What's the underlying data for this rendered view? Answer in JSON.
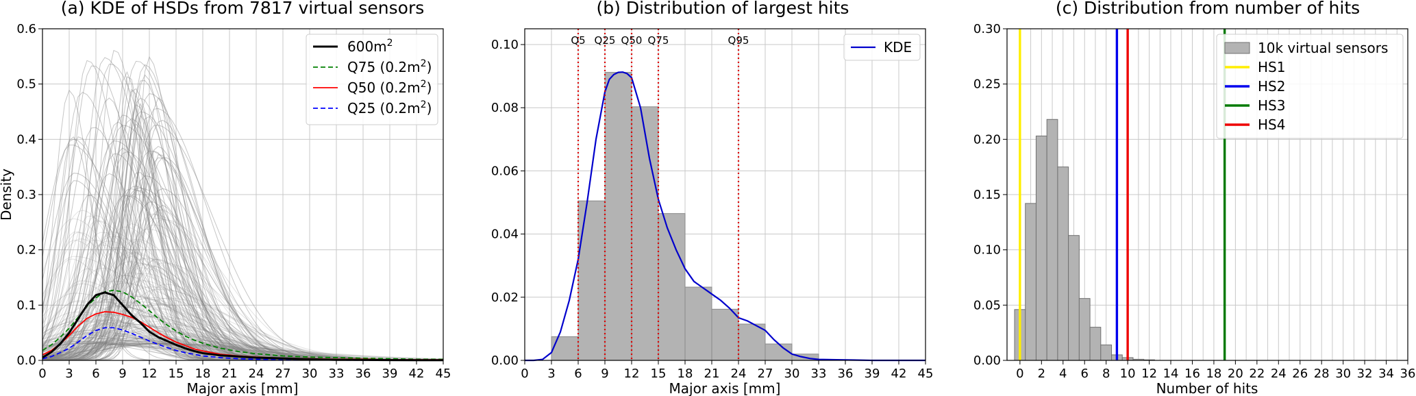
{
  "chart_data": [
    {
      "type": "line",
      "title": "(a) KDE of HSDs from 7817 virtual sensors",
      "xlabel": "Major axis [mm]",
      "ylabel": "Density",
      "xlim": [
        0,
        45
      ],
      "ylim": [
        0,
        0.6
      ],
      "xticks": [
        "0",
        "3",
        "6",
        "9",
        "12",
        "15",
        "18",
        "21",
        "24",
        "27",
        "30",
        "33",
        "36",
        "39",
        "42",
        "45"
      ],
      "yticks": [
        "0.0",
        "0.1",
        "0.2",
        "0.3",
        "0.4",
        "0.5",
        "0.6"
      ],
      "grid": true,
      "legend_position": "top-right",
      "background_ensemble": {
        "description_free": true,
        "color": "#808080",
        "peak_range": [
          0.03,
          0.58
        ],
        "mode_range": [
          3,
          14
        ]
      },
      "series": [
        {
          "name": "600m",
          "name_sup": "2",
          "style": "solid",
          "color": "#000000",
          "width": 3,
          "x": [
            0,
            1,
            2,
            3,
            4,
            5,
            6,
            7,
            8,
            9,
            10,
            11,
            12,
            13,
            14,
            15,
            16,
            17,
            18,
            19,
            20,
            21,
            22,
            24,
            26,
            28,
            30,
            33,
            36,
            39,
            42,
            45
          ],
          "y": [
            0.005,
            0.015,
            0.03,
            0.05,
            0.075,
            0.1,
            0.118,
            0.123,
            0.118,
            0.1,
            0.082,
            0.068,
            0.052,
            0.042,
            0.035,
            0.028,
            0.022,
            0.017,
            0.013,
            0.011,
            0.009,
            0.008,
            0.007,
            0.005,
            0.004,
            0.003,
            0.002,
            0.001,
            0.0008,
            0.0005,
            0.0003,
            0.0002
          ]
        },
        {
          "name": "Q75 (0.2m",
          "name_sup": "2",
          "name_end": ")",
          "style": "dashed",
          "color": "#008000",
          "width": 1.8,
          "x": [
            0,
            1,
            2,
            3,
            4,
            5,
            6,
            7,
            8,
            9,
            10,
            11,
            12,
            13,
            14,
            15,
            16,
            17,
            18,
            20,
            22,
            24,
            27,
            30,
            33,
            36,
            39,
            42,
            45
          ],
          "y": [
            0.018,
            0.028,
            0.042,
            0.058,
            0.078,
            0.098,
            0.113,
            0.124,
            0.127,
            0.124,
            0.115,
            0.103,
            0.09,
            0.076,
            0.064,
            0.053,
            0.044,
            0.037,
            0.031,
            0.022,
            0.016,
            0.012,
            0.008,
            0.006,
            0.005,
            0.004,
            0.003,
            0.002,
            0.002
          ]
        },
        {
          "name": "Q50 (0.2m",
          "name_sup": "2",
          "name_end": ")",
          "style": "solid",
          "color": "#ff0000",
          "width": 1.8,
          "x": [
            0,
            1,
            2,
            3,
            4,
            5,
            6,
            7,
            8,
            9,
            10,
            11,
            12,
            13,
            14,
            15,
            16,
            17,
            18,
            20,
            22,
            24,
            27,
            30,
            33,
            36,
            39,
            42,
            45
          ],
          "y": [
            0.01,
            0.018,
            0.03,
            0.045,
            0.062,
            0.076,
            0.084,
            0.088,
            0.087,
            0.083,
            0.078,
            0.07,
            0.06,
            0.05,
            0.041,
            0.033,
            0.027,
            0.021,
            0.017,
            0.011,
            0.008,
            0.006,
            0.004,
            0.003,
            0.002,
            0.002,
            0.001,
            0.001,
            0.001
          ]
        },
        {
          "name": "Q25 (0.2m",
          "name_sup": "2",
          "name_end": ")",
          "style": "dashed",
          "color": "#0000ff",
          "width": 1.8,
          "x": [
            0,
            1,
            2,
            3,
            4,
            5,
            6,
            7,
            8,
            9,
            10,
            11,
            12,
            13,
            14,
            15,
            16,
            17,
            18,
            20,
            22,
            24,
            27,
            30,
            33,
            36,
            39,
            42,
            45
          ],
          "y": [
            0.003,
            0.007,
            0.014,
            0.022,
            0.033,
            0.045,
            0.054,
            0.059,
            0.059,
            0.055,
            0.049,
            0.042,
            0.035,
            0.029,
            0.023,
            0.018,
            0.014,
            0.011,
            0.008,
            0.005,
            0.003,
            0.002,
            0.001,
            0.001,
            0.0005,
            0.0003,
            0.0002,
            0.0001,
            0.0001
          ]
        }
      ]
    },
    {
      "type": "bar",
      "title": "(b) Distribution of largest hits",
      "xlabel": "Major axis [mm]",
      "ylabel": "",
      "xlim": [
        0,
        45
      ],
      "ylim": [
        0,
        0.105
      ],
      "xticks": [
        "0",
        "3",
        "6",
        "9",
        "12",
        "15",
        "18",
        "21",
        "24",
        "27",
        "30",
        "33",
        "36",
        "39",
        "42",
        "45"
      ],
      "yticks": [
        "0.00",
        "0.02",
        "0.04",
        "0.06",
        "0.08",
        "0.10"
      ],
      "grid": true,
      "legend_position": "top-right",
      "bar_color": "#b3b3b3",
      "bins": [
        {
          "x0": 3,
          "x1": 6,
          "value": 0.0075
        },
        {
          "x0": 6,
          "x1": 9,
          "value": 0.0505
        },
        {
          "x0": 9,
          "x1": 12,
          "value": 0.0912
        },
        {
          "x0": 12,
          "x1": 15,
          "value": 0.0803
        },
        {
          "x0": 15,
          "x1": 18,
          "value": 0.0465
        },
        {
          "x0": 18,
          "x1": 21,
          "value": 0.0232
        },
        {
          "x0": 21,
          "x1": 24,
          "value": 0.0162
        },
        {
          "x0": 24,
          "x1": 27,
          "value": 0.0115
        },
        {
          "x0": 27,
          "x1": 30,
          "value": 0.0052
        },
        {
          "x0": 30,
          "x1": 33,
          "value": 0.002
        }
      ],
      "kde": {
        "name": "KDE",
        "color": "#0000cc",
        "x": [
          0,
          1,
          2,
          3,
          4,
          5,
          6,
          7,
          8,
          9,
          9.5,
          10,
          10.5,
          11,
          11.5,
          12,
          13,
          14,
          15,
          16,
          17,
          18,
          19,
          20,
          21,
          22,
          23,
          24,
          25,
          26,
          27,
          28,
          29,
          30,
          31,
          32,
          33,
          35,
          37,
          39,
          41,
          43,
          45
        ],
        "y": [
          0,
          0,
          0.0003,
          0.0025,
          0.009,
          0.019,
          0.032,
          0.05,
          0.07,
          0.085,
          0.089,
          0.0905,
          0.0912,
          0.0913,
          0.0908,
          0.0895,
          0.08,
          0.064,
          0.051,
          0.042,
          0.035,
          0.029,
          0.025,
          0.023,
          0.021,
          0.019,
          0.0165,
          0.0135,
          0.0125,
          0.011,
          0.0095,
          0.0065,
          0.004,
          0.002,
          0.0012,
          0.0006,
          0.0003,
          0.0002,
          0.0001,
          0,
          0,
          0,
          0
        ]
      },
      "quantiles": [
        {
          "name": "Q5",
          "x": 6
        },
        {
          "name": "Q25",
          "x": 9
        },
        {
          "name": "Q50",
          "x": 12
        },
        {
          "name": "Q75",
          "x": 15
        },
        {
          "name": "Q95",
          "x": 24
        }
      ],
      "quantile_color": "#dd0000"
    },
    {
      "type": "bar",
      "title": "(c) Distribution from number of hits",
      "xlabel": "Number of hits",
      "ylabel": "",
      "xlim": [
        -1.2,
        36
      ],
      "ylim": [
        0,
        0.3
      ],
      "xticks": [
        "0",
        "2",
        "4",
        "6",
        "8",
        "10",
        "12",
        "14",
        "16",
        "18",
        "20",
        "22",
        "24",
        "26",
        "28",
        "30",
        "32",
        "34",
        "36"
      ],
      "yticks": [
        "0.00",
        "0.05",
        "0.10",
        "0.15",
        "0.20",
        "0.25",
        "0.30"
      ],
      "grid": true,
      "legend_position": "top-right",
      "bar_color": "#b3b3b3",
      "bar_name": "10k virtual sensors",
      "bins": [
        {
          "x0": -0.5,
          "x1": 0.5,
          "value": 0.046
        },
        {
          "x0": 0.5,
          "x1": 1.5,
          "value": 0.142
        },
        {
          "x0": 1.5,
          "x1": 2.5,
          "value": 0.203
        },
        {
          "x0": 2.5,
          "x1": 3.5,
          "value": 0.218
        },
        {
          "x0": 3.5,
          "x1": 4.5,
          "value": 0.175
        },
        {
          "x0": 4.5,
          "x1": 5.5,
          "value": 0.113
        },
        {
          "x0": 5.5,
          "x1": 6.5,
          "value": 0.056
        },
        {
          "x0": 6.5,
          "x1": 7.5,
          "value": 0.03
        },
        {
          "x0": 7.5,
          "x1": 8.5,
          "value": 0.014
        },
        {
          "x0": 8.5,
          "x1": 9.5,
          "value": 0.005
        },
        {
          "x0": 9.5,
          "x1": 10.5,
          "value": 0.0025
        },
        {
          "x0": 10.5,
          "x1": 11.5,
          "value": 0.001
        },
        {
          "x0": 11.5,
          "x1": 12.5,
          "value": 0.0005
        }
      ],
      "lines": [
        {
          "name": "HS1",
          "x": 0,
          "color": "#ffee00"
        },
        {
          "name": "HS2",
          "x": 9,
          "color": "#0000ee"
        },
        {
          "name": "HS3",
          "x": 19,
          "color": "#007a00"
        },
        {
          "name": "HS4",
          "x": 10,
          "color": "#ee0000"
        }
      ]
    }
  ]
}
